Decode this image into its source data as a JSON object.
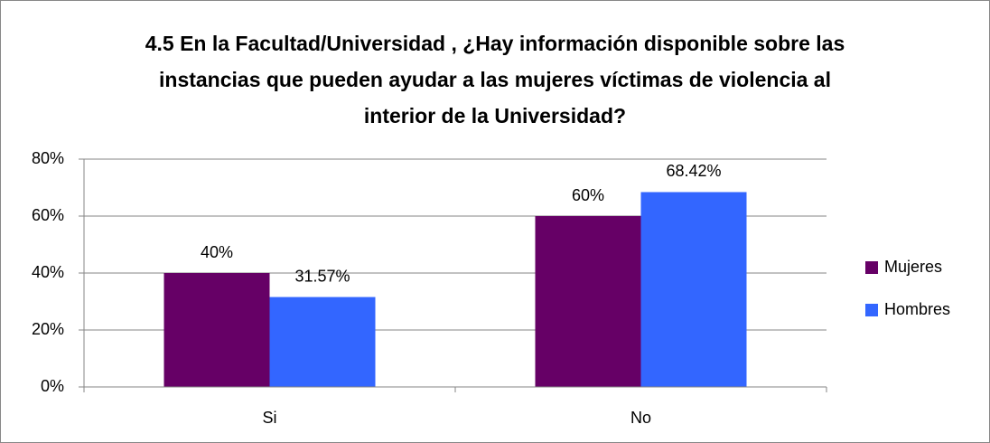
{
  "chart_data": {
    "type": "bar",
    "title": "4.5 En la Facultad/Universidad , ¿Hay información disponible sobre las instancias que pueden ayudar a las mujeres víctimas de violencia al interior de la Universidad?",
    "categories": [
      "Si",
      "No"
    ],
    "series": [
      {
        "name": "Mujeres",
        "color": "#660066",
        "values": [
          40,
          60
        ],
        "value_labels": [
          "40%",
          "60%"
        ]
      },
      {
        "name": "Hombres",
        "color": "#3366ff",
        "values": [
          31.57,
          68.42
        ],
        "value_labels": [
          "31.57%",
          "68.42%"
        ]
      }
    ],
    "ylim": [
      0,
      80
    ],
    "yticks": [
      {
        "value": 0,
        "label": "0%"
      },
      {
        "value": 20,
        "label": "20%"
      },
      {
        "value": 40,
        "label": "40%"
      },
      {
        "value": 60,
        "label": "60%"
      },
      {
        "value": 80,
        "label": "80%"
      }
    ],
    "grid": true,
    "legend": "right"
  }
}
